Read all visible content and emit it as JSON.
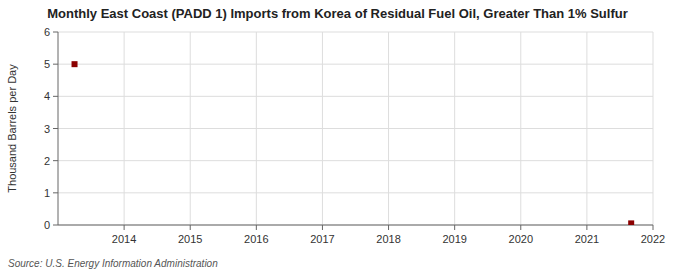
{
  "chart_data": {
    "type": "scatter",
    "title": "Monthly East Coast (PADD 1) Imports from Korea of Residual Fuel Oil, Greater Than 1% Sulfur",
    "ylabel": "Thousand Barrels per Day",
    "source": "Source: U.S. Energy Information Administration",
    "x": [
      2013.25,
      2021.67
    ],
    "values": [
      5.0,
      0.05
    ],
    "color": "#8b0000",
    "marker": "square",
    "xlim": [
      2013.0,
      2022.0
    ],
    "ylim": [
      0,
      6
    ],
    "xticks": [
      2014,
      2015,
      2016,
      2017,
      2018,
      2019,
      2020,
      2021,
      2022
    ],
    "yticks": [
      0,
      1,
      2,
      3,
      4,
      5,
      6
    ],
    "grid": true
  }
}
